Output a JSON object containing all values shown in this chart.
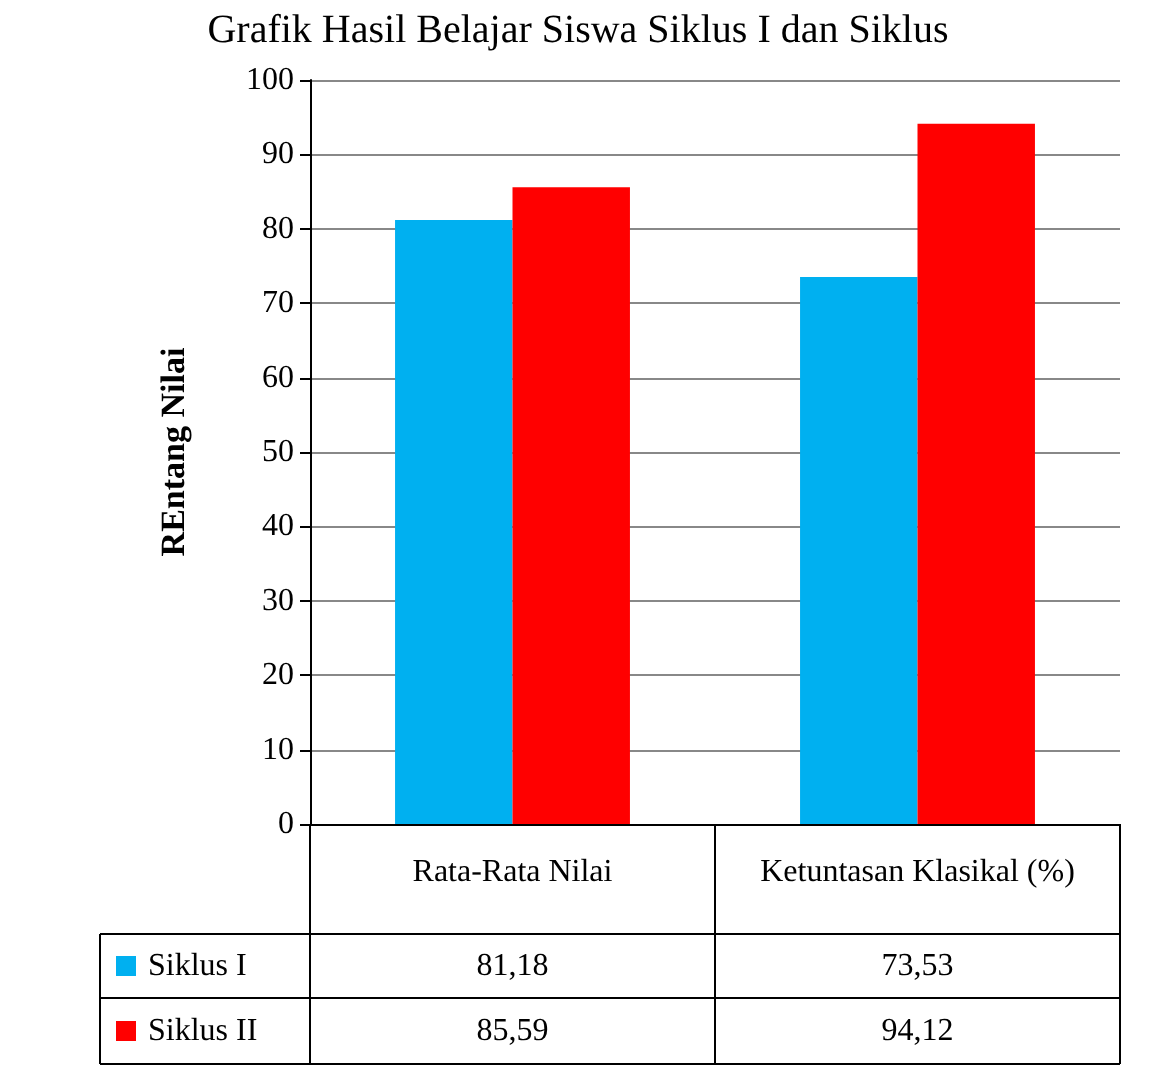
{
  "chart_data": {
    "type": "bar",
    "title": "Grafik Hasil Belajar Siswa Siklus I dan Siklus",
    "ylabel": "REntang Nilai",
    "categories": [
      "Rata-Rata Nilai",
      "Ketuntasan Klasikal (%)"
    ],
    "series": [
      {
        "name": "Siklus I",
        "color": "#00b0f0",
        "values": [
          81.18,
          73.53
        ],
        "value_labels": [
          "81,18",
          "73,53"
        ]
      },
      {
        "name": "Siklus II",
        "color": "#ff0000",
        "values": [
          85.59,
          94.12
        ],
        "value_labels": [
          "85,59",
          "94,12"
        ]
      }
    ],
    "ylim": [
      0,
      100
    ],
    "yticks": [
      0,
      10,
      20,
      30,
      40,
      50,
      60,
      70,
      80,
      90,
      100
    ],
    "grid": "y",
    "legend": "bottom left"
  }
}
